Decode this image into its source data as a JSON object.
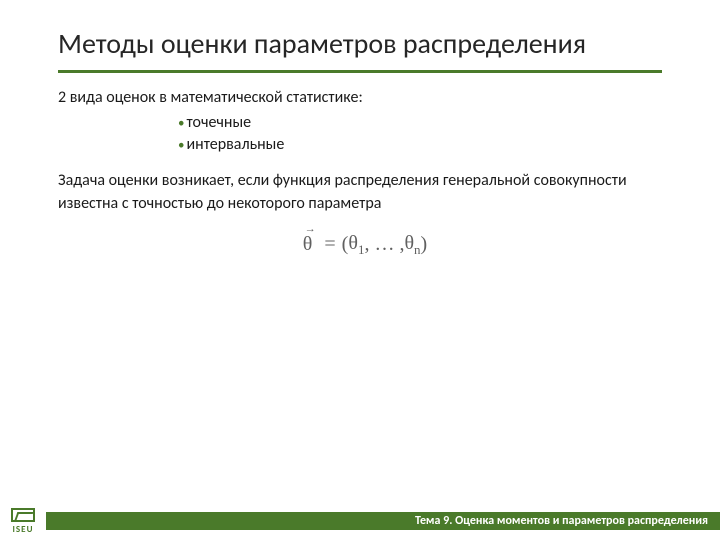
{
  "colors": {
    "accent": "#4a7a2a",
    "text": "#1a1a1a",
    "title": "#262626",
    "formula": "#606060",
    "footer_text": "#ffffff",
    "background": "#ffffff"
  },
  "typography": {
    "title_fontsize": 28,
    "body_fontsize": 16,
    "footer_fontsize": 12,
    "formula_fontsize": 20
  },
  "title": "Методы оценки параметров распределения",
  "intro": "2 вида оценок в математической статистике:",
  "bullets": [
    "точечные",
    "интервальные"
  ],
  "paragraph": "Задача оценки возникает, если функция распределения генеральной совокупности известна с точностью до некоторого параметра",
  "formula": {
    "lhs_symbol": "θ",
    "lhs_arrow": "→",
    "equals": "=",
    "open": "(",
    "item1_base": "θ",
    "item1_sub": "1",
    "sep": ", … ,",
    "itemn_base": "θ",
    "itemn_sub": "n",
    "close": ")"
  },
  "footer": {
    "logo_label": "ISEU",
    "topic": "Тема 9. Оценка моментов и параметров распределения"
  }
}
